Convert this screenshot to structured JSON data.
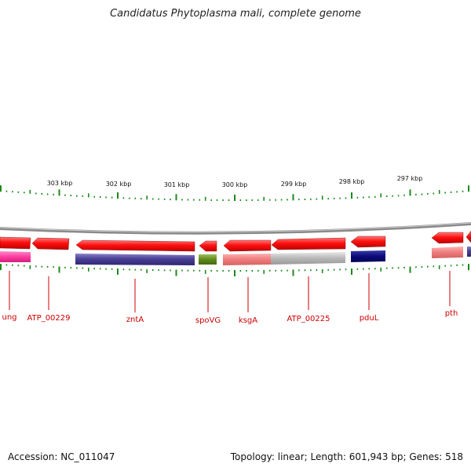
{
  "title": "Candidatus Phytoplasma mali, complete genome",
  "footer": {
    "accession": "Accession: NC_011047",
    "topology": "Topology: linear; Length: 601,943 bp; Genes: 518"
  },
  "colors": {
    "tick": "#1a8a1a",
    "gene_label": "#cc0000",
    "backbone": "#8a8a8a"
  },
  "ruler_labels": [
    "303 kbp",
    "302 kbp",
    "301 kbp",
    "300 kbp",
    "299 kbp",
    "298 kbp",
    "297 kbp"
  ],
  "gene_labels": [
    "ung",
    "ATP_00229",
    "zntA",
    "spoVG",
    "ksgA",
    "ATP_00225",
    "pduL",
    "pth"
  ]
}
